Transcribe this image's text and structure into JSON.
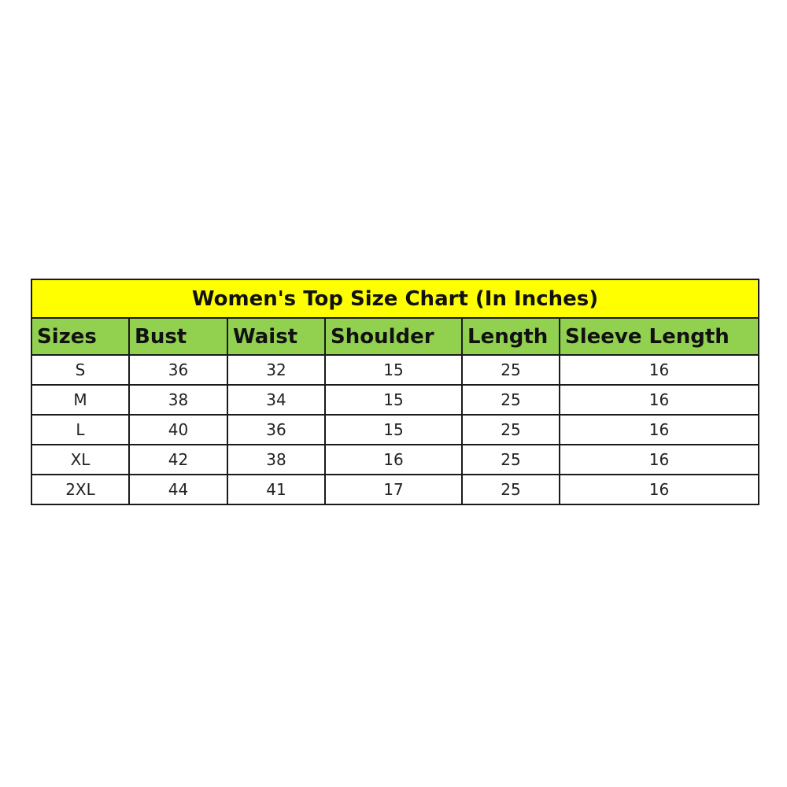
{
  "title": "Women's Top Size Chart (In Inches)",
  "colors": {
    "title_bg": "#ffff00",
    "header_bg": "#92d050"
  },
  "headers": [
    "Sizes",
    "Bust",
    "Waist",
    "Shoulder",
    "Length",
    "Sleeve Length"
  ],
  "rows": [
    [
      "S",
      "36",
      "32",
      "15",
      "25",
      "16"
    ],
    [
      "M",
      "38",
      "34",
      "15",
      "25",
      "16"
    ],
    [
      "L",
      "40",
      "36",
      "15",
      "25",
      "16"
    ],
    [
      "XL",
      "42",
      "38",
      "16",
      "25",
      "16"
    ],
    [
      "2XL",
      "44",
      "41",
      "17",
      "25",
      "16"
    ]
  ]
}
